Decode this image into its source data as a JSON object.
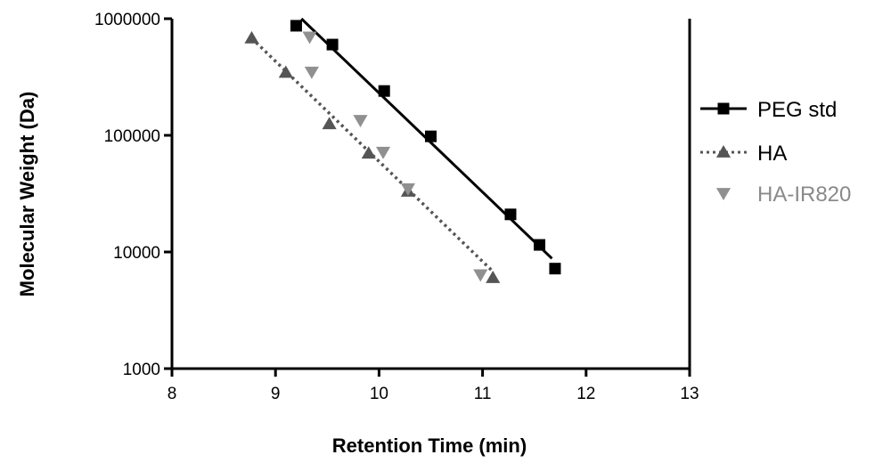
{
  "chart_data": {
    "type": "scatter",
    "xlabel": "Retention Time (min)",
    "ylabel": "Molecular Weight (Da)",
    "xlim": [
      8,
      13
    ],
    "ylim": [
      1000,
      1000000
    ],
    "yscale": "log",
    "x_ticks": [
      "8",
      "9",
      "10",
      "11",
      "12",
      "13"
    ],
    "y_ticks": [
      "1000",
      "10000",
      "100000",
      "1000000"
    ],
    "x_tick_values": [
      8,
      9,
      10,
      11,
      12,
      13
    ],
    "y_tick_values": [
      1000,
      10000,
      100000,
      1000000
    ],
    "grid": false,
    "legend_position": "right",
    "series": [
      {
        "name": "PEG std",
        "marker": "square",
        "color": "#000000",
        "line": "solid",
        "points": [
          {
            "x": 9.2,
            "y": 870000
          },
          {
            "x": 9.55,
            "y": 600000
          },
          {
            "x": 10.05,
            "y": 240000
          },
          {
            "x": 10.5,
            "y": 98000
          },
          {
            "x": 11.27,
            "y": 21000
          },
          {
            "x": 11.55,
            "y": 11500
          },
          {
            "x": 11.7,
            "y": 7200
          }
        ],
        "fit": [
          {
            "x": 9.25,
            "y": 1000000
          },
          {
            "x": 11.67,
            "y": 8800
          }
        ]
      },
      {
        "name": "HA",
        "marker": "triangle-up",
        "color": "#555555",
        "line": "dotted",
        "points": [
          {
            "x": 8.77,
            "y": 680000
          },
          {
            "x": 9.1,
            "y": 345000
          },
          {
            "x": 9.52,
            "y": 125000
          },
          {
            "x": 9.9,
            "y": 70000
          },
          {
            "x": 10.28,
            "y": 33000
          },
          {
            "x": 11.1,
            "y": 6000
          }
        ],
        "fit": [
          {
            "x": 8.77,
            "y": 680000
          },
          {
            "x": 11.1,
            "y": 6800
          }
        ]
      },
      {
        "name": "HA-IR820",
        "marker": "triangle-down",
        "color": "#909090",
        "line": "none",
        "points": [
          {
            "x": 9.33,
            "y": 700000
          },
          {
            "x": 9.35,
            "y": 350000
          },
          {
            "x": 9.82,
            "y": 135000
          },
          {
            "x": 10.04,
            "y": 72000
          },
          {
            "x": 10.28,
            "y": 35000
          },
          {
            "x": 10.98,
            "y": 6400
          }
        ]
      }
    ]
  }
}
